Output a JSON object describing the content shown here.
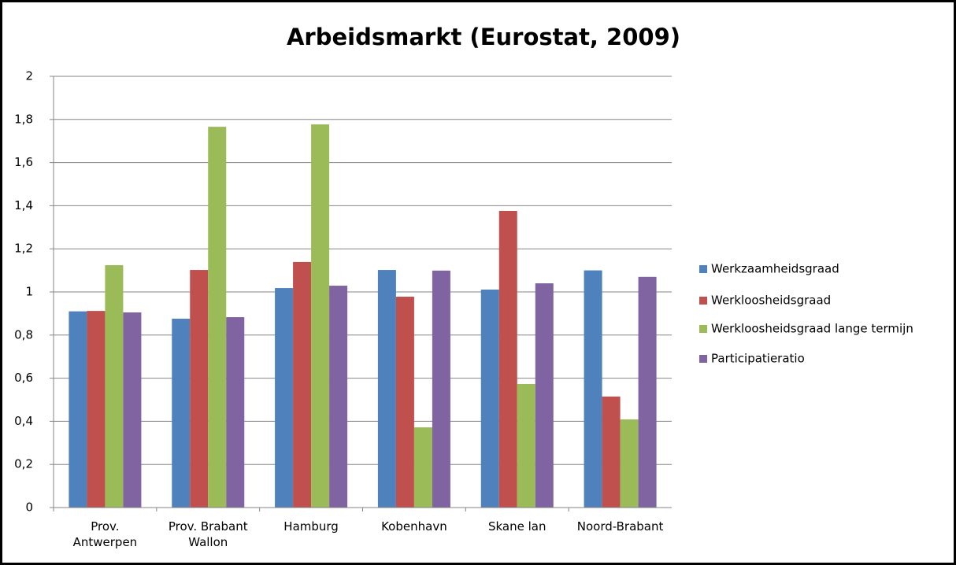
{
  "chart_data": {
    "type": "bar",
    "title": "Arbeidsmarkt (Eurostat, 2009)",
    "categories": [
      "Prov. Antwerpen",
      "Prov. Brabant Wallon",
      "Hamburg",
      "Kobenhavn",
      "Skane lan",
      "Noord-Brabant"
    ],
    "series": [
      {
        "name": "Werkzaamheidsgraad",
        "color": "#4f81bd",
        "values": [
          0.91,
          0.876,
          1.018,
          1.102,
          1.011,
          1.1
        ]
      },
      {
        "name": "Werkloosheidsgraad",
        "color": "#c0504d",
        "values": [
          0.912,
          1.102,
          1.139,
          0.978,
          1.376,
          0.515
        ]
      },
      {
        "name": "Werkloosheidsgraad lange termijn",
        "color": "#9bbb59",
        "values": [
          1.124,
          1.766,
          1.777,
          0.372,
          0.573,
          0.409
        ]
      },
      {
        "name": "Participatieratio",
        "color": "#8064a2",
        "values": [
          0.905,
          0.883,
          1.029,
          1.099,
          1.04,
          1.07
        ]
      }
    ],
    "ylim": [
      0,
      2
    ],
    "yticks": [
      0,
      {
        "value": 0.2,
        "label": "0,2"
      },
      {
        "value": 0.4,
        "label": "0,4"
      },
      {
        "value": 0.6,
        "label": "0,6"
      },
      {
        "value": 0.8,
        "label": "0,8"
      },
      1,
      {
        "value": 1.2,
        "label": "1,2"
      },
      {
        "value": 1.4,
        "label": "1,4"
      },
      {
        "value": 1.6,
        "label": "1,6"
      },
      {
        "value": 1.8,
        "label": "1,8"
      },
      2
    ],
    "grid": true,
    "legend": "right"
  }
}
